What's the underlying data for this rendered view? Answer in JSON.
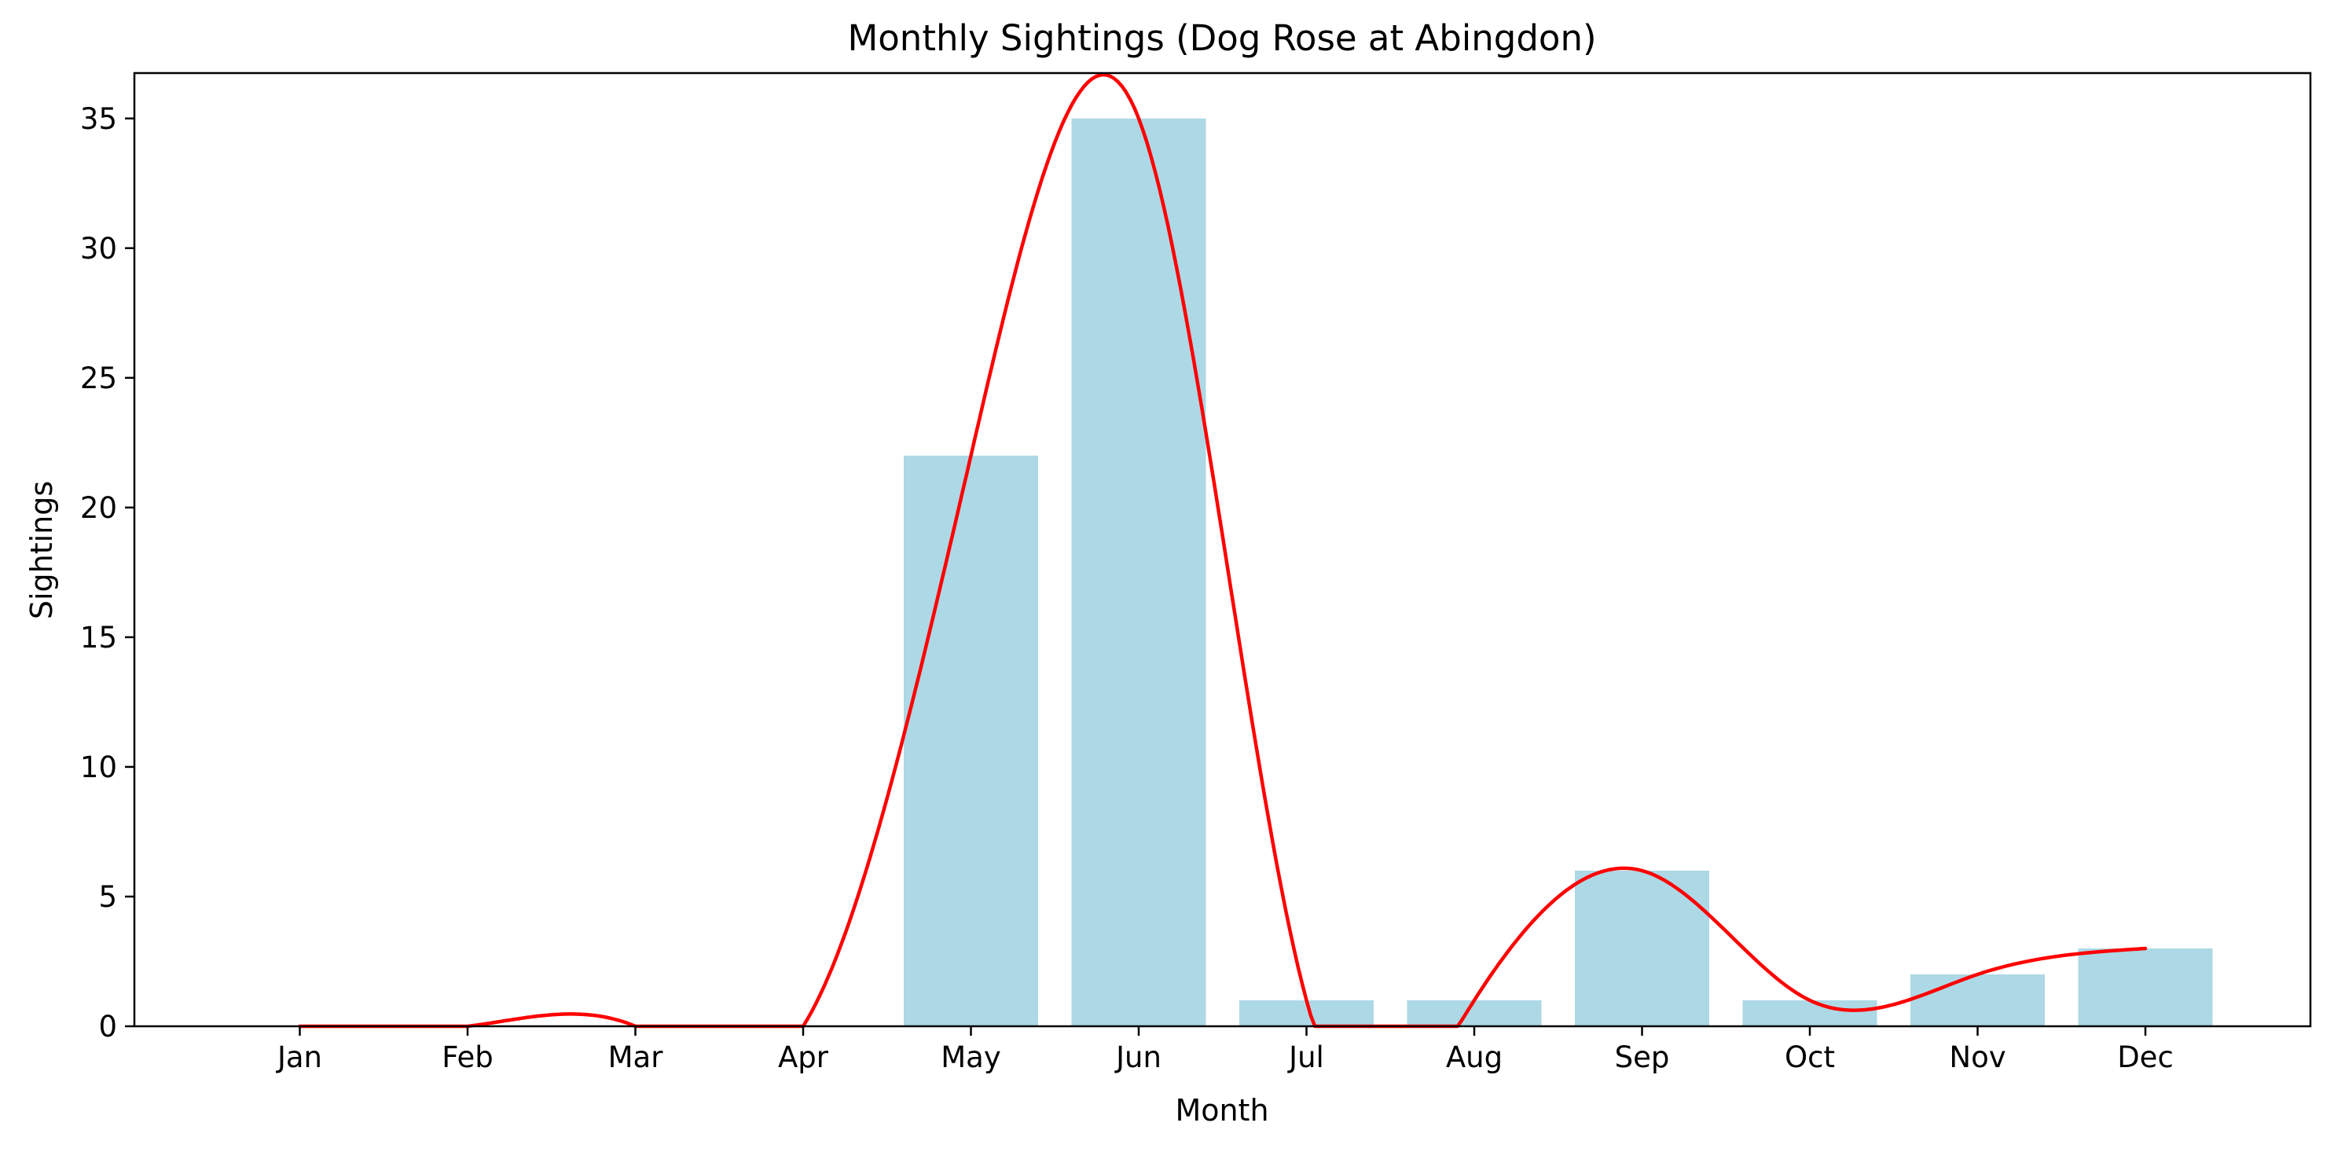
{
  "chart_data": {
    "type": "bar",
    "title": "Monthly Sightings (Dog Rose at Abingdon)",
    "xlabel": "Month",
    "ylabel": "Sightings",
    "categories": [
      "Jan",
      "Feb",
      "Mar",
      "Apr",
      "May",
      "Jun",
      "Jul",
      "Aug",
      "Sep",
      "Oct",
      "Nov",
      "Dec"
    ],
    "values": [
      0,
      0,
      0,
      0,
      22,
      35,
      1,
      1,
      6,
      1,
      2,
      3
    ],
    "ylim": [
      0,
      36.75
    ],
    "yticks": [
      0,
      5,
      10,
      15,
      20,
      25,
      30,
      35
    ],
    "grid": false,
    "legend": "none",
    "bar_color": "#add8e6",
    "line": {
      "style": "smoothed",
      "color": "#ff0000"
    }
  }
}
